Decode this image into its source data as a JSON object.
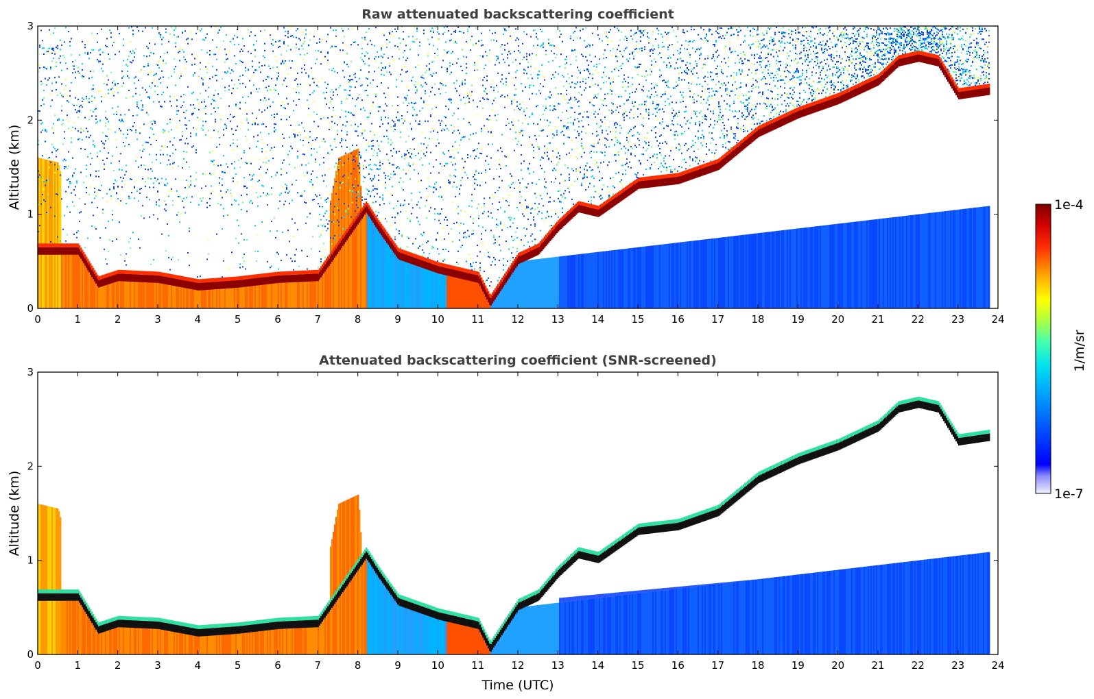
{
  "chart_data": [
    {
      "type": "heatmap",
      "title": "Raw attenuated backscattering coefficient",
      "xlabel": "",
      "ylabel": "Altitude (km)",
      "xlim": [
        0,
        24
      ],
      "ylim": [
        0,
        3
      ],
      "x_ticks": [
        "0",
        "1",
        "2",
        "3",
        "4",
        "5",
        "6",
        "7",
        "8",
        "9",
        "10",
        "11",
        "12",
        "13",
        "14",
        "15",
        "16",
        "17",
        "18",
        "19",
        "20",
        "21",
        "22",
        "23",
        "24"
      ],
      "y_ticks": [
        "0",
        "1",
        "2",
        "3"
      ],
      "data_end_time_utc": 23.8,
      "features": {
        "surface_aerosol_regime": {
          "time_utc": [
            0,
            0.5,
            1,
            2,
            3,
            4,
            5,
            6,
            7,
            7.5,
            8,
            8.1
          ],
          "top_km": [
            1.6,
            1.55,
            0.6,
            0.38,
            0.35,
            0.3,
            0.3,
            0.35,
            0.45,
            1.6,
            1.7,
            1.0
          ]
        },
        "layer_top_km": {
          "time_utc": [
            0.5,
            1,
            1.5,
            2,
            3,
            4,
            5,
            6,
            7,
            8.2,
            8.5,
            9,
            10,
            11,
            11.3,
            12,
            12.5,
            13,
            13.5,
            14,
            14.5,
            15,
            16,
            17,
            18,
            19,
            20,
            21,
            21.5,
            22,
            22.5,
            23,
            23.8
          ],
          "height_km": [
            0.6,
            0.6,
            0.25,
            0.32,
            0.3,
            0.22,
            0.25,
            0.3,
            0.32,
            1.05,
            0.85,
            0.55,
            0.4,
            0.3,
            0.05,
            0.5,
            0.6,
            0.85,
            1.05,
            1.0,
            1.15,
            1.3,
            1.35,
            1.5,
            1.85,
            2.05,
            2.2,
            2.4,
            2.6,
            2.65,
            2.6,
            2.25,
            2.3
          ]
        },
        "background_noise_level": "high above boundary layer, increasing in afternoon"
      }
    },
    {
      "type": "heatmap",
      "title": "Attenuated backscattering coefficient (SNR-screened)",
      "xlabel": "Time (UTC)",
      "ylabel": "Altitude (km)",
      "xlim": [
        0,
        24
      ],
      "ylim": [
        0,
        3
      ],
      "x_ticks": [
        "0",
        "1",
        "2",
        "3",
        "4",
        "5",
        "6",
        "7",
        "8",
        "9",
        "10",
        "11",
        "12",
        "13",
        "14",
        "15",
        "16",
        "17",
        "18",
        "19",
        "20",
        "21",
        "22",
        "23",
        "24"
      ],
      "y_ticks": [
        "0",
        "1",
        "2",
        "3"
      ],
      "data_end_time_utc": 23.8,
      "screened": true
    }
  ],
  "colorbar": {
    "label": "1/m/sr",
    "max_label": "1e-4",
    "min_label": "1e-7",
    "vmin": 1e-07,
    "vmax": 0.0001,
    "scale": "log",
    "colors": [
      "#e6e6ff",
      "#9c9cff",
      "#0000ff",
      "#0066ff",
      "#00b4ff",
      "#1ee6d2",
      "#64ff96",
      "#c8ff32",
      "#ffff00",
      "#ffb400",
      "#ff5a00",
      "#e60000",
      "#8b0000"
    ]
  }
}
